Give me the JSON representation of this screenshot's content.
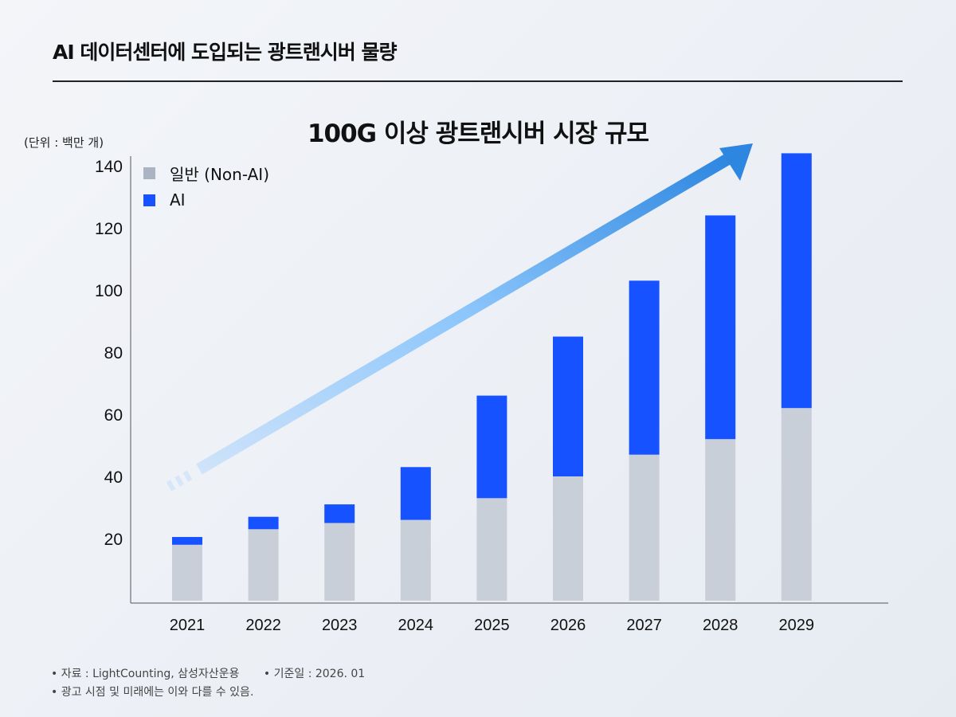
{
  "header": {
    "title": "AI 데이터센터에 도입되는 광트랜시버 물량"
  },
  "footnotes": {
    "source": "• 자료 : LightCounting, 삼성자산운용",
    "date": "• 기준일 : 2026. 01",
    "disclaimer": "• 광고 시점 및 미래에는 이와 다를 수 있음."
  },
  "chart_data": {
    "type": "bar",
    "stacked": true,
    "title": "100G 이상 광트랜시버 시장 규모",
    "unit_label": "(단위 : 백만 개)",
    "categories": [
      "2021",
      "2022",
      "2023",
      "2024",
      "2025",
      "2026",
      "2027",
      "2028",
      "2029"
    ],
    "series": [
      {
        "name": "일반 (Non-AI)",
        "color": "#c9cfd8",
        "legend_color": "#aab4c2",
        "values": [
          18,
          23,
          25,
          26,
          33,
          40,
          47,
          52,
          62
        ]
      },
      {
        "name": "AI",
        "color": "#1652ff",
        "legend_color": "#1652ff",
        "values": [
          2.5,
          4,
          6,
          17,
          33,
          45,
          56,
          72,
          82
        ]
      }
    ],
    "yticks": [
      "20",
      "40",
      "60",
      "80",
      "100",
      "120",
      "140"
    ],
    "ylim": [
      0,
      145
    ],
    "grid": false,
    "legend_position": "top-left",
    "annotation": "upward trend arrow"
  }
}
